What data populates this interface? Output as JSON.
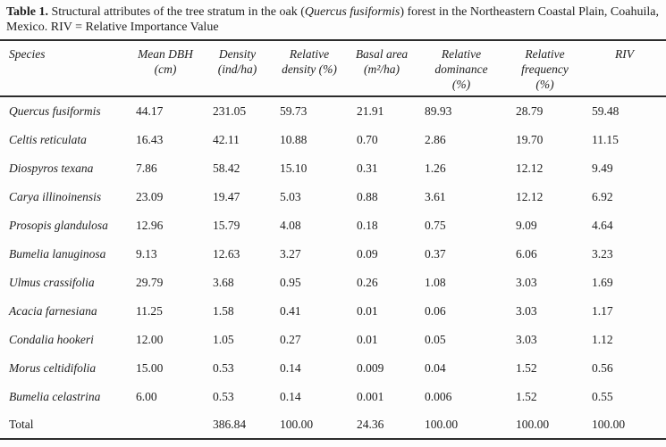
{
  "caption": {
    "label": "Table 1.",
    "line1_before_italic": " Structural attributes of the tree stratum in the oak (",
    "line1_italic": "Quercus fusiformis",
    "line1_after_italic": ") forest in the Northeastern Coastal Plain, Coahuila,",
    "line2": "Mexico. RIV = Relative Importance Value"
  },
  "table": {
    "columns": [
      {
        "id": "species",
        "lines": [
          "Species"
        ]
      },
      {
        "id": "mean-dbh",
        "lines": [
          "Mean DBH",
          "(cm)"
        ]
      },
      {
        "id": "density",
        "lines": [
          "Density",
          "(ind/ha)"
        ]
      },
      {
        "id": "relative-density",
        "lines": [
          "Relative",
          "density (%)"
        ]
      },
      {
        "id": "basal-area",
        "lines": [
          "Basal area",
          "(m²/ha)"
        ]
      },
      {
        "id": "relative-dominance",
        "lines": [
          "Relative",
          "dominance",
          "(%)"
        ]
      },
      {
        "id": "relative-frequency",
        "lines": [
          "Relative",
          "frequency",
          "(%)"
        ]
      },
      {
        "id": "riv",
        "lines": [
          "RIV"
        ]
      }
    ],
    "rows": [
      {
        "species": "Quercus fusiformis",
        "values": [
          "44.17",
          "231.05",
          "59.73",
          "21.91",
          "89.93",
          "28.79",
          "59.48"
        ]
      },
      {
        "species": "Celtis reticulata",
        "values": [
          "16.43",
          "42.11",
          "10.88",
          "0.70",
          "2.86",
          "19.70",
          "11.15"
        ]
      },
      {
        "species": "Diospyros texana",
        "values": [
          "7.86",
          "58.42",
          "15.10",
          "0.31",
          "1.26",
          "12.12",
          "9.49"
        ]
      },
      {
        "species": "Carya illinoinensis",
        "values": [
          "23.09",
          "19.47",
          "5.03",
          "0.88",
          "3.61",
          "12.12",
          "6.92"
        ]
      },
      {
        "species": "Prosopis glandulosa",
        "values": [
          "12.96",
          "15.79",
          "4.08",
          "0.18",
          "0.75",
          "9.09",
          "4.64"
        ]
      },
      {
        "species": "Bumelia lanuginosa",
        "values": [
          "9.13",
          "12.63",
          "3.27",
          "0.09",
          "0.37",
          "6.06",
          "3.23"
        ]
      },
      {
        "species": "Ulmus crassifolia",
        "values": [
          "29.79",
          "3.68",
          "0.95",
          "0.26",
          "1.08",
          "3.03",
          "1.69"
        ]
      },
      {
        "species": "Acacia farnesiana",
        "values": [
          "11.25",
          "1.58",
          "0.41",
          "0.01",
          "0.06",
          "3.03",
          "1.17"
        ]
      },
      {
        "species": "Condalia hookeri",
        "values": [
          "12.00",
          "1.05",
          "0.27",
          "0.01",
          "0.05",
          "3.03",
          "1.12"
        ]
      },
      {
        "species": "Morus celtidifolia",
        "values": [
          "15.00",
          "0.53",
          "0.14",
          "0.009",
          "0.04",
          "1.52",
          "0.56"
        ]
      },
      {
        "species": "Bumelia celastrina",
        "values": [
          "6.00",
          "0.53",
          "0.14",
          "0.001",
          "0.006",
          "1.52",
          "0.55"
        ]
      }
    ],
    "total_row": {
      "label": "Total",
      "values": [
        "",
        "386.84",
        "100.00",
        "24.36",
        "100.00",
        "100.00",
        "100.00"
      ]
    }
  },
  "colors": {
    "background": "#fdfdfd",
    "text": "#1f1f1f",
    "rule": "#2c2c2c"
  }
}
